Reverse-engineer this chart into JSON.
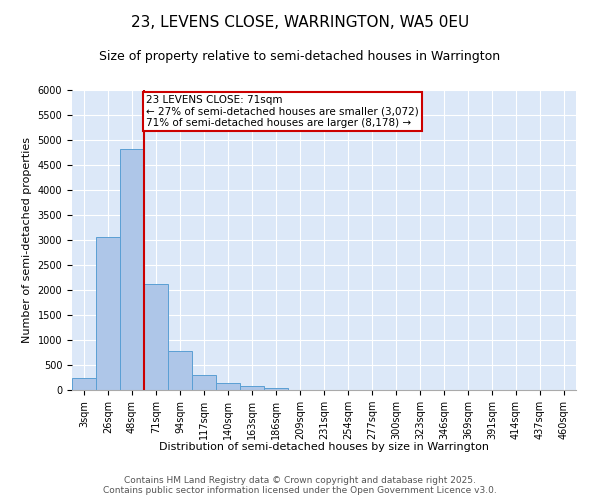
{
  "title": "23, LEVENS CLOSE, WARRINGTON, WA5 0EU",
  "subtitle": "Size of property relative to semi-detached houses in Warrington",
  "xlabel": "Distribution of semi-detached houses by size in Warrington",
  "ylabel": "Number of semi-detached properties",
  "footer_line1": "Contains HM Land Registry data © Crown copyright and database right 2025.",
  "footer_line2": "Contains public sector information licensed under the Open Government Licence v3.0.",
  "bar_labels": [
    "3sqm",
    "26sqm",
    "48sqm",
    "71sqm",
    "94sqm",
    "117sqm",
    "140sqm",
    "163sqm",
    "186sqm",
    "209sqm",
    "231sqm",
    "254sqm",
    "277sqm",
    "300sqm",
    "323sqm",
    "346sqm",
    "369sqm",
    "391sqm",
    "414sqm",
    "437sqm",
    "460sqm"
  ],
  "bar_values": [
    240,
    3060,
    4820,
    2130,
    780,
    305,
    140,
    75,
    35,
    10,
    5,
    0,
    0,
    0,
    0,
    0,
    0,
    0,
    0,
    0,
    0
  ],
  "bar_color": "#aec6e8",
  "bar_edge_color": "#5a9fd4",
  "background_color": "#dce8f8",
  "ylim": [
    0,
    6000
  ],
  "yticks": [
    0,
    500,
    1000,
    1500,
    2000,
    2500,
    3000,
    3500,
    4000,
    4500,
    5000,
    5500,
    6000
  ],
  "vline_x_index": 3,
  "annotation_text_line1": "23 LEVENS CLOSE: 71sqm",
  "annotation_text_line2": "← 27% of semi-detached houses are smaller (3,072)",
  "annotation_text_line3": "71% of semi-detached houses are larger (8,178) →",
  "annotation_box_color": "#ffffff",
  "annotation_box_edge_color": "#cc0000",
  "vline_color": "#cc0000",
  "title_fontsize": 11,
  "subtitle_fontsize": 9,
  "axis_label_fontsize": 8,
  "tick_fontsize": 7,
  "annotation_fontsize": 7.5,
  "footer_fontsize": 6.5
}
